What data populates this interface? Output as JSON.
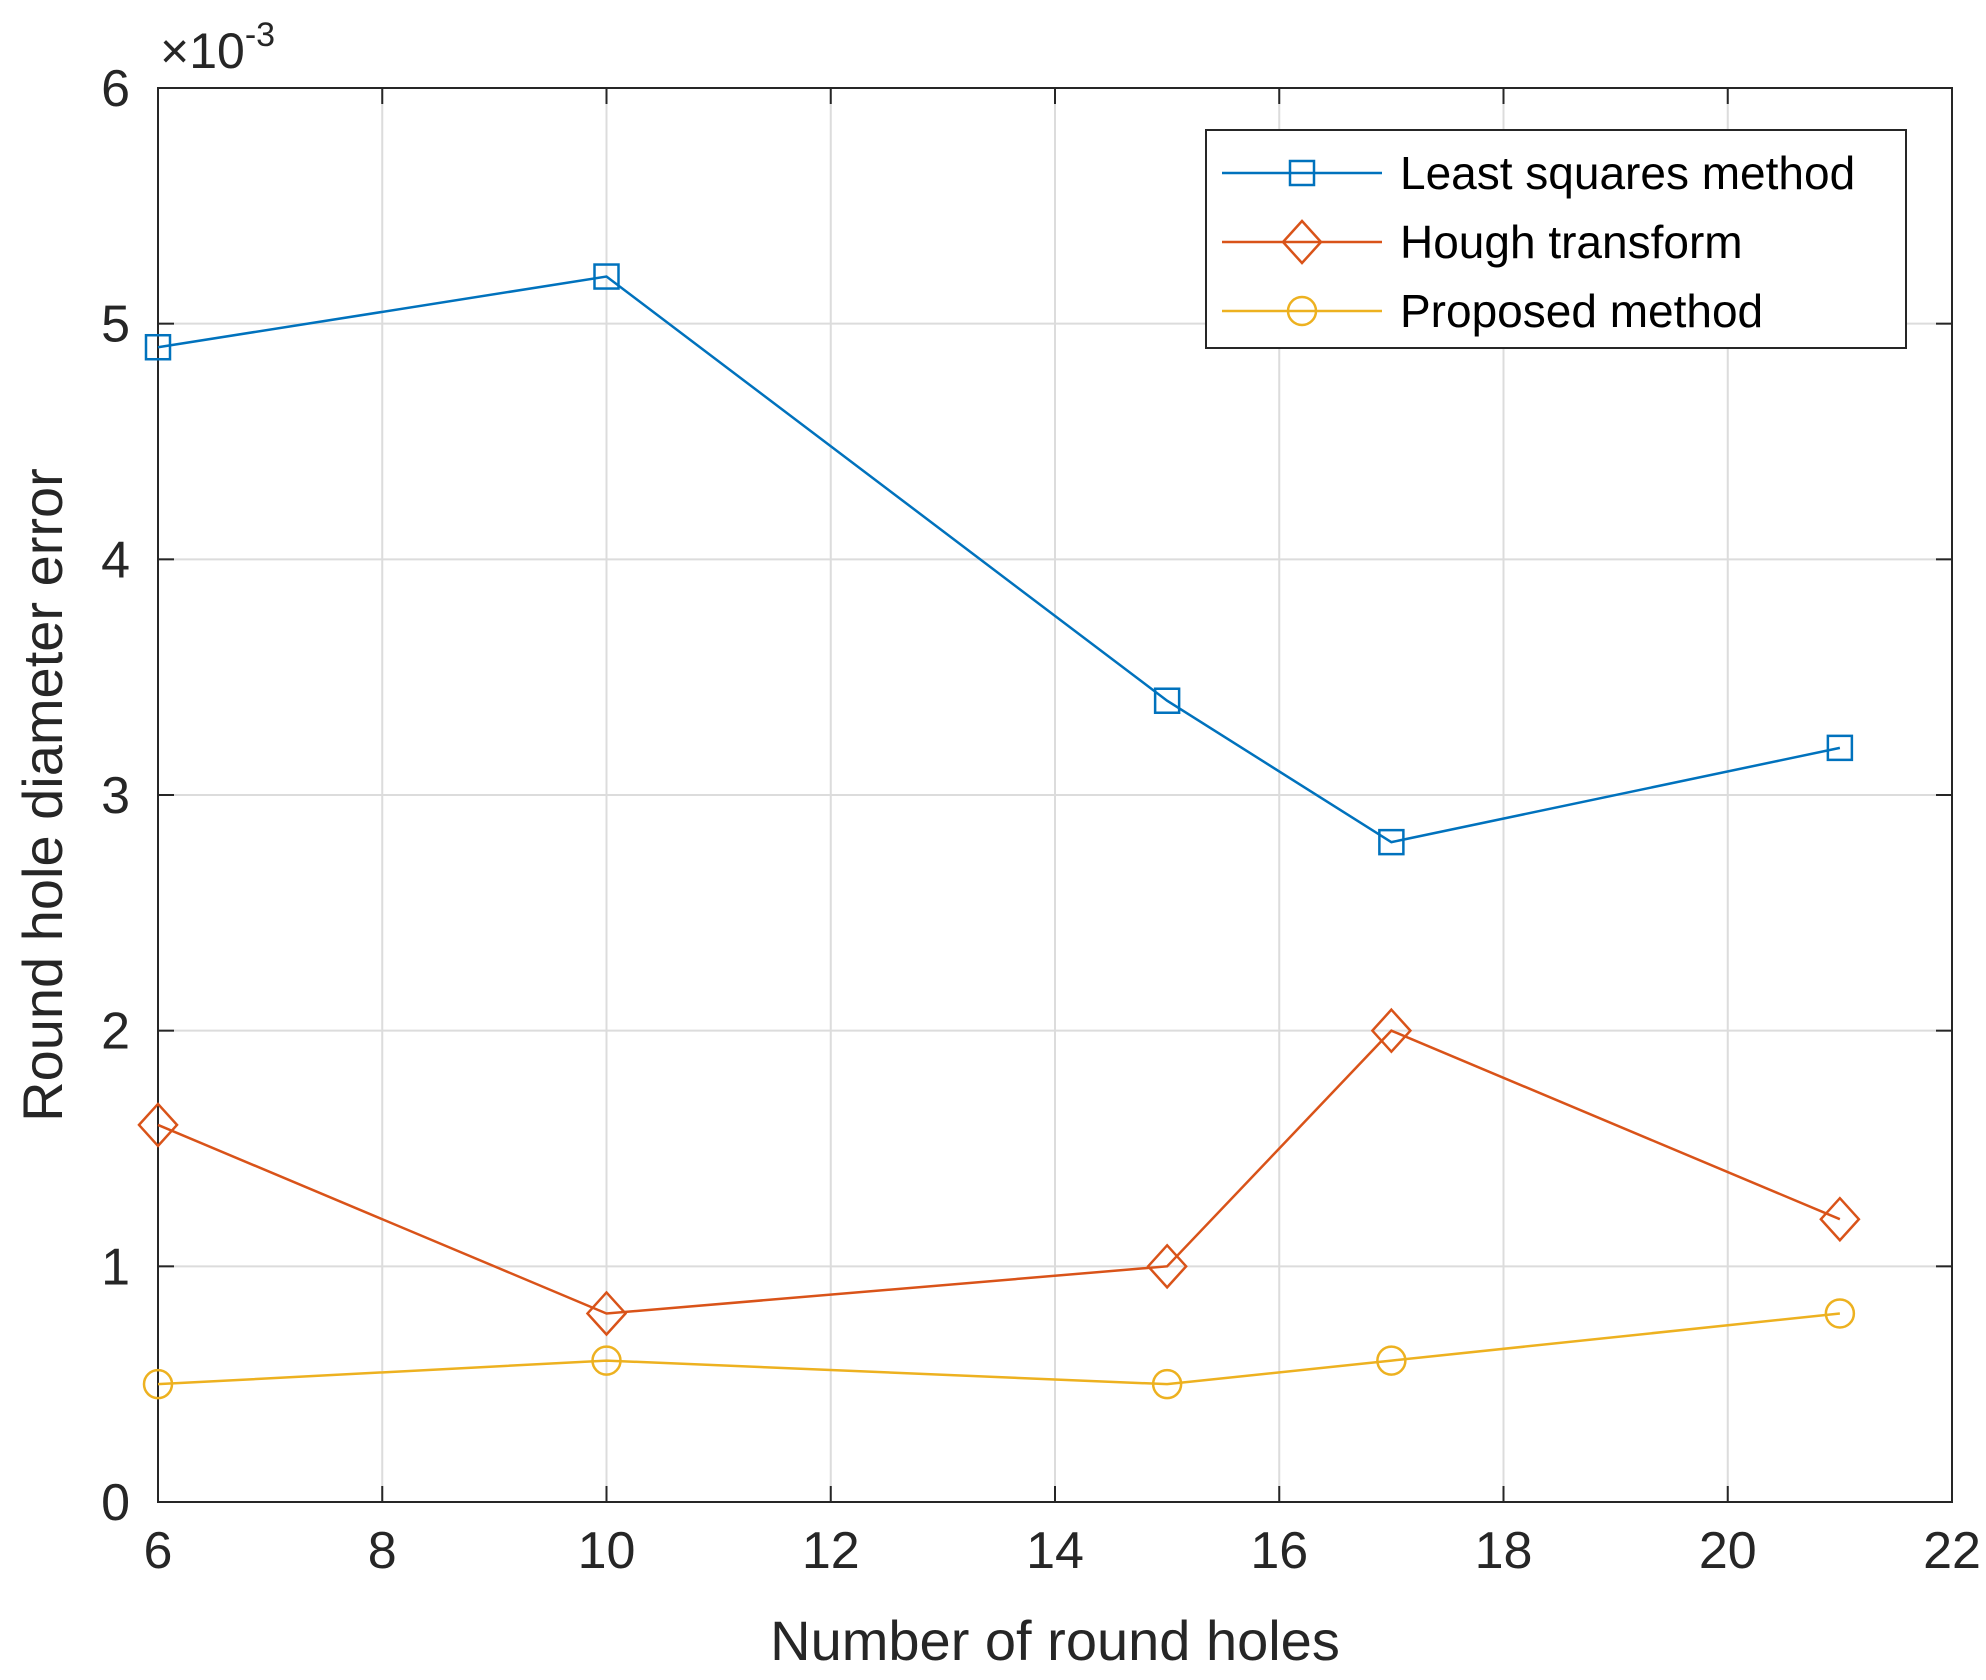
{
  "chart_data": {
    "type": "line",
    "title": "",
    "xlabel": "Number of round holes",
    "ylabel": "Round hole diameter error",
    "y_exponent_label": {
      "base": "×10",
      "exp": "-3"
    },
    "x": [
      6,
      10,
      15,
      17,
      21
    ],
    "xlim": [
      6,
      22
    ],
    "ylim": [
      0,
      6
    ],
    "xticks": [
      6,
      8,
      10,
      12,
      14,
      16,
      18,
      20,
      22
    ],
    "yticks": [
      0,
      1,
      2,
      3,
      4,
      5,
      6
    ],
    "grid": true,
    "legend_position": "top-right",
    "series": [
      {
        "name": "Least squares method",
        "marker": "square",
        "color": "#0072BD",
        "values": [
          4.9,
          5.2,
          3.4,
          2.8,
          3.2
        ]
      },
      {
        "name": "Hough transform",
        "marker": "diamond",
        "color": "#D95319",
        "values": [
          1.6,
          0.8,
          1.0,
          2.0,
          1.2
        ]
      },
      {
        "name": "Proposed method",
        "marker": "circle",
        "color": "#EDB120",
        "values": [
          0.5,
          0.6,
          0.5,
          0.6,
          0.8
        ]
      }
    ]
  }
}
